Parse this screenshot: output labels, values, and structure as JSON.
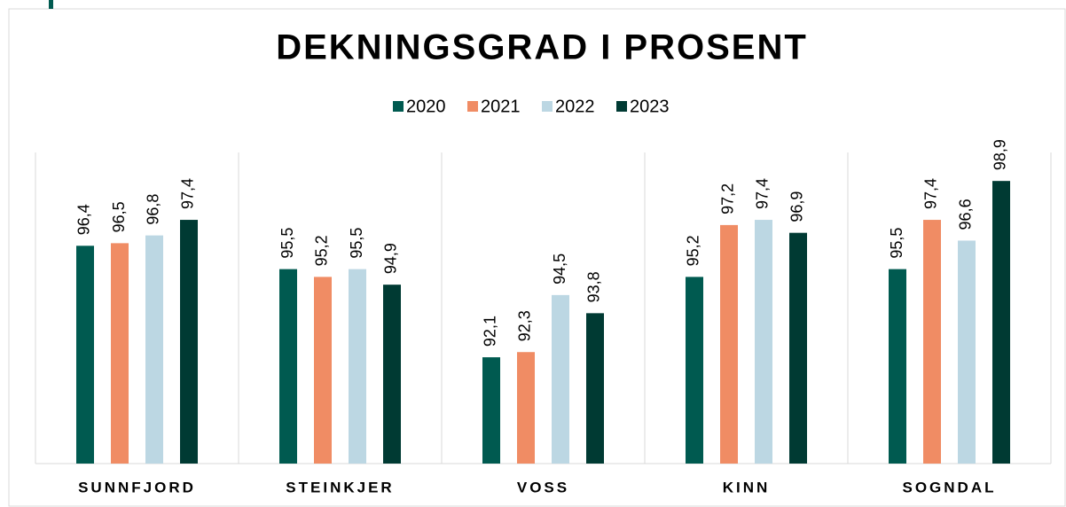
{
  "chart_data": {
    "type": "bar",
    "title": "DEKNINGSGRAD I PROSENT",
    "categories": [
      "SUNNFJORD",
      "STEINKJER",
      "VOSS",
      "KINN",
      "SOGNDAL"
    ],
    "series": [
      {
        "name": "2020",
        "color": "#005a50",
        "values": [
          96.4,
          95.5,
          92.1,
          95.2,
          95.5
        ],
        "value_labels": [
          "96,4",
          "95,5",
          "92,1",
          "95,2",
          "95,5"
        ]
      },
      {
        "name": "2021",
        "color": "#f08c64",
        "values": [
          96.5,
          95.2,
          92.3,
          97.2,
          97.4
        ],
        "value_labels": [
          "96,5",
          "95,2",
          "92,3",
          "97,2",
          "97,4"
        ]
      },
      {
        "name": "2022",
        "color": "#bcd7e3",
        "values": [
          96.8,
          95.5,
          94.5,
          97.4,
          96.6
        ],
        "value_labels": [
          "96,8",
          "95,5",
          "94,5",
          "97,4",
          "96,6"
        ]
      },
      {
        "name": "2023",
        "color": "#003a33",
        "values": [
          97.4,
          94.9,
          93.8,
          96.9,
          98.9
        ],
        "value_labels": [
          "97,4",
          "94,9",
          "93,8",
          "96,9",
          "98,9"
        ]
      }
    ],
    "ylim": [
      88,
      100
    ],
    "legend": "top"
  }
}
